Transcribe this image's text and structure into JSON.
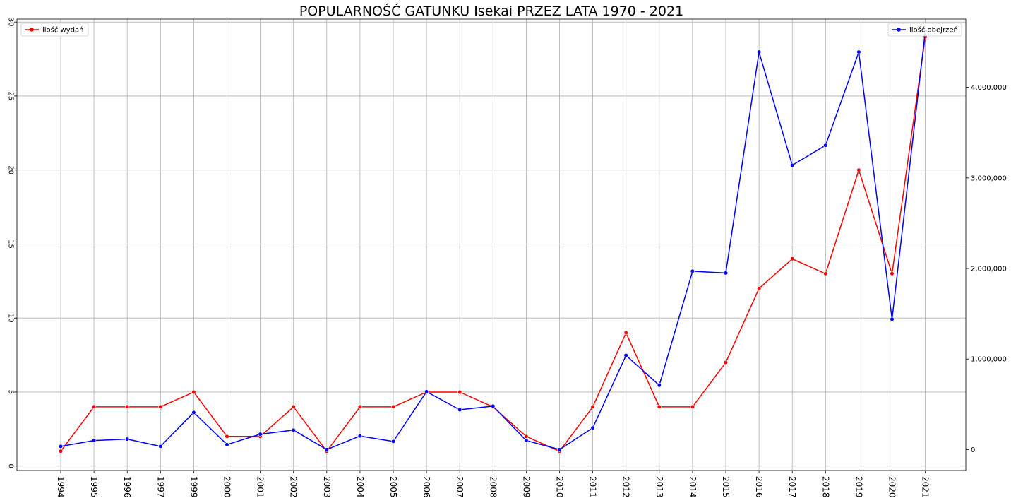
{
  "chart_data": {
    "type": "line",
    "title": "POPULARNOŚĆ GATUNKU Isekai PRZEZ LATA 1970 - 2021",
    "categories": [
      "1994",
      "1995",
      "1996",
      "1997",
      "1999",
      "2000",
      "2001",
      "2002",
      "2003",
      "2004",
      "2005",
      "2006",
      "2007",
      "2008",
      "2009",
      "2010",
      "2011",
      "2012",
      "2013",
      "2014",
      "2015",
      "2016",
      "2017",
      "2018",
      "2019",
      "2020",
      "2021"
    ],
    "series": [
      {
        "name": "ilość wydań",
        "axis": "left",
        "color": "#ff0000",
        "values": [
          1,
          4,
          4,
          4,
          5,
          2,
          2,
          4,
          1,
          4,
          4,
          5,
          5,
          4,
          2,
          1,
          4,
          9,
          4,
          4,
          7,
          12,
          14,
          13,
          20,
          13,
          29
        ]
      },
      {
        "name": "ilość obejrzeń",
        "axis": "right",
        "color": "#0000ff",
        "values": [
          35000,
          100000,
          115000,
          35000,
          410000,
          55000,
          170000,
          215000,
          0,
          150000,
          90000,
          640000,
          440000,
          480000,
          100000,
          0,
          240000,
          1040000,
          710000,
          1970000,
          1950000,
          4390000,
          3140000,
          3360000,
          4390000,
          1440000,
          4620000
        ]
      }
    ],
    "y_left": {
      "ylim": [
        -0.3,
        30.2
      ],
      "ticks": [
        0,
        5,
        10,
        15,
        20,
        25,
        30
      ],
      "tick_labels": [
        "0",
        "5",
        "10",
        "15",
        "20",
        "25",
        "30"
      ]
    },
    "y_right": {
      "ylim": [
        -231000,
        4754000
      ],
      "ticks": [
        0,
        1000000,
        2000000,
        3000000,
        4000000
      ],
      "tick_labels": [
        "0",
        "1,000,000",
        "2,000,000",
        "3,000,000",
        "4,000,000"
      ]
    },
    "grid": true,
    "legends": [
      {
        "label": "ilość wydań",
        "placement": "top-left"
      },
      {
        "label": "ilość obejrzeń",
        "placement": "top-right"
      }
    ]
  }
}
